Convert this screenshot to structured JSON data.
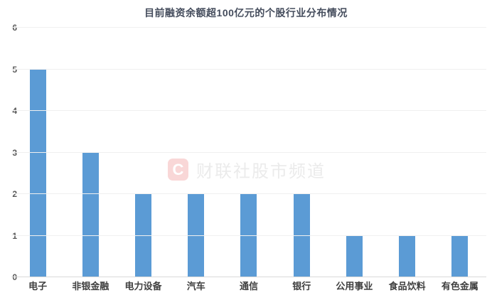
{
  "chart_data": {
    "type": "bar",
    "title": "目前融资余额超100亿元的个股行业分布情况",
    "categories": [
      "电子",
      "非银金融",
      "电力设备",
      "汽车",
      "通信",
      "银行",
      "公用事业",
      "食品饮料",
      "有色金属"
    ],
    "values": [
      5,
      3,
      2,
      2,
      2,
      2,
      1,
      1,
      1
    ],
    "xlabel": "",
    "ylabel": "",
    "ylim": [
      0,
      6
    ],
    "yticks": [
      0,
      1,
      2,
      3,
      4,
      5,
      6
    ],
    "grid": true,
    "legend_position": "none",
    "bar_color": "#5b9bd5",
    "title_color": "#444c5c",
    "tick_label_color": "#595959",
    "category_label_color": "#404040",
    "gridline_color": "#f0f0f0",
    "axis_line_color": "#d9d9d9",
    "background_color": "#ffffff"
  },
  "watermark": {
    "logo_letter": "C",
    "text": "财联社股市频道",
    "logo_bg_color": "#f9d7d7",
    "logo_letter_color": "#ffffff",
    "text_color": "#ebebeb"
  }
}
